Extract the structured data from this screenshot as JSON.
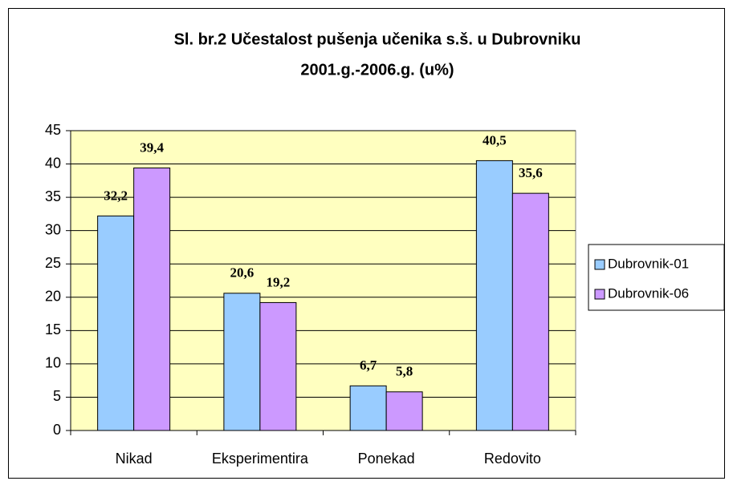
{
  "chart_data": {
    "type": "bar",
    "title": [
      "Sl. br.2 Učestalost pušenja učenika s.š. u Dubrovniku",
      "2001.g.-2006.g. (u%)"
    ],
    "categories": [
      "Nikad",
      "Eksperimentira",
      "Ponekad",
      "Redovito"
    ],
    "series": [
      {
        "name": "Dubrovnik-01",
        "color": "#99ccff",
        "values": [
          32.2,
          20.6,
          6.7,
          40.5
        ],
        "value_labels": [
          "32,2",
          "20,6",
          "6,7",
          "40,5"
        ]
      },
      {
        "name": "Dubrovnik-06",
        "color": "#cc99ff",
        "values": [
          39.4,
          19.2,
          5.8,
          35.6
        ],
        "value_labels": [
          "39,4",
          "19,2",
          "5,8",
          "35,6"
        ]
      }
    ],
    "ylim": [
      0,
      45
    ],
    "yticks": [
      0,
      5,
      10,
      15,
      20,
      25,
      30,
      35,
      40,
      45
    ],
    "grid": true,
    "plot_background": "#ffffc0",
    "legend": "right"
  }
}
